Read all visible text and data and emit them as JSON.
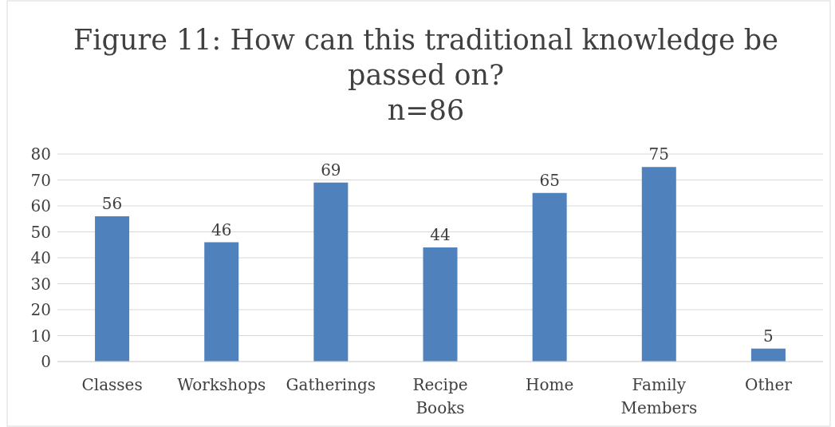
{
  "chart_data": {
    "type": "bar",
    "title": "Figure 11: How can this traditional knowledge be passed on?",
    "subtitle": "n=86",
    "categories": [
      "Classes",
      "Workshops",
      "Gatherings",
      "Recipe Books",
      "Home",
      "Family Members",
      "Other"
    ],
    "values": [
      56,
      46,
      69,
      44,
      65,
      75,
      5
    ],
    "color": "#4f81bd",
    "ylim": [
      0,
      80
    ],
    "yticks": [
      0,
      10,
      20,
      30,
      40,
      50,
      60,
      70,
      80
    ],
    "grid": "y",
    "data_labels": true
  }
}
